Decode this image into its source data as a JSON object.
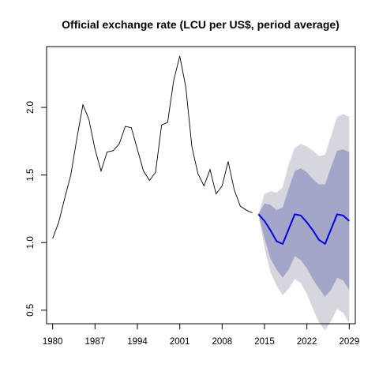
{
  "chart_data": {
    "type": "line",
    "title": "Official exchange rate (LCU per US$, period average)",
    "xlabel": "",
    "ylabel": "",
    "xlim": [
      1979,
      2030
    ],
    "ylim": [
      0.4,
      2.45
    ],
    "x_ticks": [
      1980,
      1987,
      1994,
      2001,
      2008,
      2015,
      2022,
      2029
    ],
    "y_ticks": [
      0.5,
      1.0,
      1.5,
      2.0
    ],
    "y_tick_labels": [
      "0.5",
      "1.0",
      "1.5",
      "2.0"
    ],
    "colors": {
      "history": "#000000",
      "forecast": "#0000ee",
      "band80": "#a3a6c8",
      "band95": "#d6d6de"
    },
    "series": [
      {
        "role": "history",
        "x": [
          1980,
          1981,
          1982,
          1983,
          1984,
          1985,
          1986,
          1987,
          1988,
          1989,
          1990,
          1991,
          1992,
          1993,
          1994,
          1995,
          1996,
          1997,
          1998,
          1999,
          2000,
          2001,
          2002,
          2003,
          2004,
          2005,
          2006,
          2007,
          2008,
          2009,
          2010,
          2011,
          2012,
          2013
        ],
        "values": [
          1.03,
          1.15,
          1.33,
          1.5,
          1.77,
          2.02,
          1.91,
          1.69,
          1.53,
          1.67,
          1.68,
          1.73,
          1.86,
          1.85,
          1.69,
          1.53,
          1.46,
          1.52,
          1.87,
          1.89,
          2.2,
          2.38,
          2.15,
          1.71,
          1.51,
          1.42,
          1.54,
          1.36,
          1.42,
          1.6,
          1.39,
          1.27,
          1.24,
          1.22
        ]
      },
      {
        "role": "forecast",
        "x": [
          2014,
          2015,
          2016,
          2017,
          2018,
          2019,
          2020,
          2021,
          2022,
          2023,
          2024,
          2025,
          2026,
          2027,
          2028,
          2029
        ],
        "values": [
          1.21,
          1.16,
          1.09,
          1.01,
          0.99,
          1.1,
          1.21,
          1.2,
          1.15,
          1.09,
          1.02,
          0.99,
          1.1,
          1.21,
          1.2,
          1.16
        ],
        "lo80": [
          1.21,
          1.03,
          0.88,
          0.8,
          0.74,
          0.8,
          0.9,
          0.87,
          0.81,
          0.73,
          0.66,
          0.6,
          0.65,
          0.74,
          0.72,
          0.65
        ],
        "hi80": [
          1.21,
          1.29,
          1.28,
          1.24,
          1.26,
          1.4,
          1.53,
          1.55,
          1.52,
          1.47,
          1.43,
          1.43,
          1.56,
          1.68,
          1.69,
          1.67
        ],
        "lo95": [
          1.21,
          0.96,
          0.78,
          0.68,
          0.61,
          0.66,
          0.73,
          0.7,
          0.62,
          0.51,
          0.41,
          0.35,
          0.42,
          0.51,
          0.48,
          0.4
        ],
        "hi95": [
          1.21,
          1.36,
          1.38,
          1.37,
          1.41,
          1.58,
          1.7,
          1.73,
          1.71,
          1.68,
          1.64,
          1.65,
          1.79,
          1.93,
          1.95,
          1.93
        ]
      }
    ]
  }
}
